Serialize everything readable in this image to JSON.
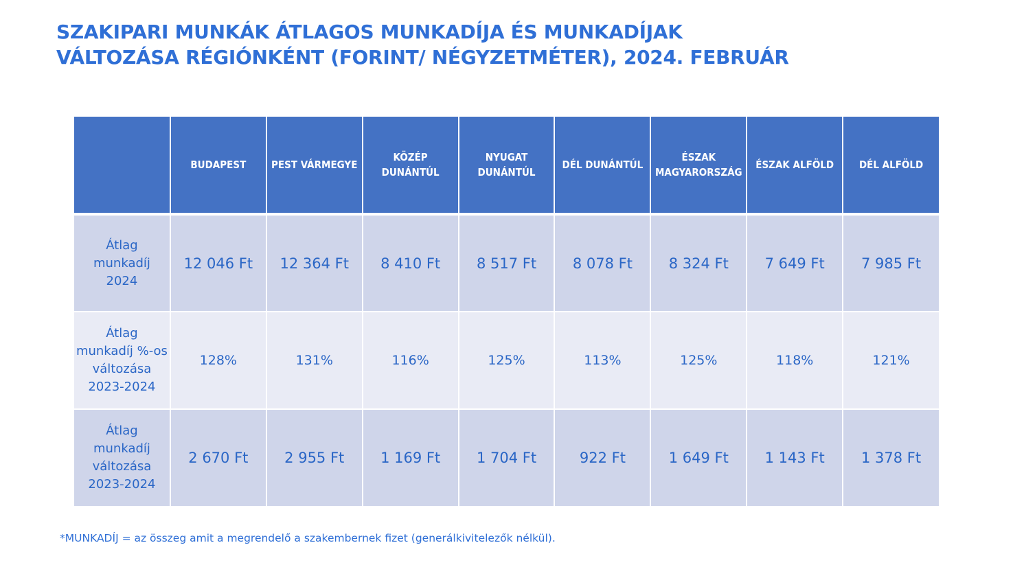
{
  "title": {
    "line1": "SZAKIPARI MUNKÁK ÁTLAGOS MUNKADÍJA ÉS MUNKADÍJAK",
    "line2": "VÁLTOZÁSA RÉGIÓNKÉNT (FORINT/ NÉGYZETMÉTER), 2024. FEBRUÁR"
  },
  "table": {
    "corner": "",
    "headers": [
      [
        "BUDAPEST"
      ],
      [
        "PEST VÁRMEGYE"
      ],
      [
        "KÖZÉP",
        "DUNÁNTÚL"
      ],
      [
        "NYUGAT",
        "DUNÁNTÚL"
      ],
      [
        "DÉL DUNÁNTÚL"
      ],
      [
        "ÉSZAK",
        "MAGYARORSZÁG"
      ],
      [
        "ÉSZAK ALFÖLD"
      ],
      [
        "DÉL ALFÖLD"
      ]
    ],
    "rows": [
      {
        "label": [
          "Átlag",
          "munkadíj",
          "2024"
        ],
        "values": [
          "12 046 Ft",
          "12 364 Ft",
          "8 410 Ft",
          "8 517 Ft",
          "8 078 Ft",
          "8 324 Ft",
          "7 649 Ft",
          "7 985 Ft"
        ]
      },
      {
        "label": [
          "Átlag",
          "munkadíj %-os",
          "változása",
          "2023-2024"
        ],
        "values": [
          "128%",
          "131%",
          "116%",
          "125%",
          "113%",
          "125%",
          "118%",
          "121%"
        ]
      },
      {
        "label": [
          "Átlag",
          "munkadíj",
          "változása",
          "2023-2024"
        ],
        "values": [
          "2 670 Ft",
          "2 955 Ft",
          "1 169 Ft",
          "1 704 Ft",
          "922 Ft",
          "1 649 Ft",
          "1 143 Ft",
          "1 378 Ft"
        ]
      }
    ]
  },
  "footnote": "*MUNKADÍJ = az összeg amit a megrendelő a szakembernek fizet (generálkivitelezők nélkül).",
  "colors": {
    "accent": "#2f6fd6",
    "header_bg": "#4472c4",
    "row_dark": "#cfd5ea",
    "row_light": "#e9ebf5"
  }
}
